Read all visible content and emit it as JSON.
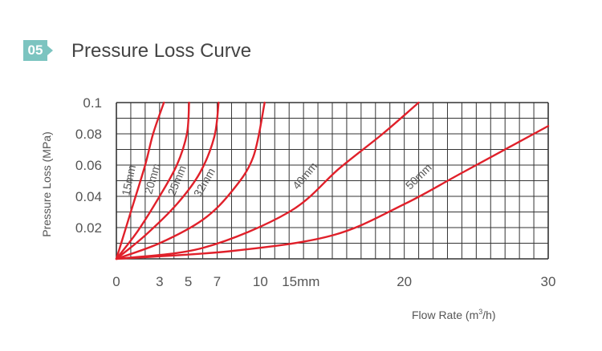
{
  "header": {
    "badge": "05",
    "title": "Pressure Loss Curve"
  },
  "chart_data": {
    "type": "line",
    "title": "Pressure Loss Curve",
    "ylabel": "Pressure Loss (MPa)",
    "xlabel": "Flow Rate (m³/h)",
    "ylim": [
      0,
      0.1
    ],
    "y_ticks": [
      "0.1",
      "0.08",
      "0.06",
      "0.04",
      "0.02"
    ],
    "y_tick_values": [
      0.1,
      0.08,
      0.06,
      0.04,
      0.02
    ],
    "x_ticks": [
      "0",
      "3",
      "5",
      "7",
      "10",
      "15mm",
      "20",
      "30"
    ],
    "x_tick_values": [
      0,
      3,
      5,
      7,
      10,
      15,
      20,
      30
    ],
    "grid": true,
    "line_color": "#e0202a",
    "series": [
      {
        "name": "15mm",
        "x": [
          0,
          1,
          2,
          2.55,
          3.3
        ],
        "y": [
          0,
          0.03,
          0.06,
          0.08,
          0.1
        ]
      },
      {
        "name": "20mm",
        "x": [
          0,
          1.5,
          3,
          4.2,
          4.9,
          5.05
        ],
        "y": [
          0,
          0.018,
          0.04,
          0.06,
          0.08,
          0.1
        ]
      },
      {
        "name": "25mm",
        "x": [
          0,
          2,
          4.2,
          5.8,
          6.8,
          7.1
        ],
        "y": [
          0,
          0.015,
          0.035,
          0.055,
          0.078,
          0.1
        ]
      },
      {
        "name": "32mm",
        "x": [
          0,
          3,
          6,
          8,
          9.5,
          10.3
        ],
        "y": [
          0,
          0.01,
          0.025,
          0.043,
          0.065,
          0.1
        ]
      },
      {
        "name": "40mm",
        "x": [
          0,
          6,
          12,
          15.5,
          18.5,
          21
        ],
        "y": [
          0,
          0.007,
          0.03,
          0.058,
          0.08,
          0.1
        ]
      },
      {
        "name": "50mm",
        "x": [
          0,
          8,
          15,
          20,
          24,
          30
        ],
        "y": [
          0,
          0.005,
          0.015,
          0.035,
          0.055,
          0.085
        ]
      }
    ],
    "curve_labels": [
      "15mm",
      "20mm",
      "25mm",
      "32mm",
      "40mm",
      "50mm"
    ],
    "axis_labels_x": "Flow Rate (m",
    "axis_labels_x_sup": "3",
    "axis_labels_x_end": "/h)"
  }
}
